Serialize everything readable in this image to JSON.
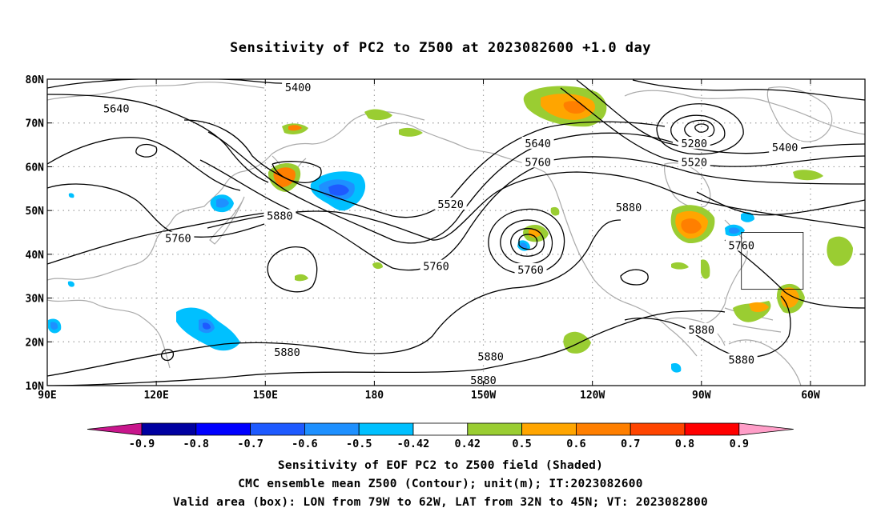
{
  "title": "Sensitivity of PC2 to Z500 at 2023082600 +1.0 day",
  "map": {
    "lat_labels": [
      "80N",
      "70N",
      "60N",
      "50N",
      "40N",
      "30N",
      "20N",
      "10N"
    ],
    "lat_values": [
      80,
      70,
      60,
      50,
      40,
      30,
      20,
      10
    ],
    "lon_labels": [
      "90E",
      "120E",
      "150E",
      "180",
      "150W",
      "120W",
      "90W",
      "60W"
    ],
    "lon_values": [
      90,
      120,
      150,
      180,
      210,
      240,
      270,
      300
    ],
    "lon_range": [
      90,
      315
    ],
    "lat_range": [
      10,
      80
    ],
    "contour_labels": [
      {
        "text": "5640",
        "lon": 109,
        "lat": 73.3
      },
      {
        "text": "5400",
        "lon": 159,
        "lat": 78.2
      },
      {
        "text": "5520",
        "lon": 201,
        "lat": 51.5
      },
      {
        "text": "5880",
        "lon": 154,
        "lat": 48.8
      },
      {
        "text": "5760",
        "lon": 126,
        "lat": 43.7
      },
      {
        "text": "5760",
        "lon": 197,
        "lat": 37.3
      },
      {
        "text": "5640",
        "lon": 225,
        "lat": 65.4
      },
      {
        "text": "5760",
        "lon": 225,
        "lat": 61.1
      },
      {
        "text": "5760",
        "lon": 223,
        "lat": 36.5
      },
      {
        "text": "5880",
        "lon": 250,
        "lat": 50.8
      },
      {
        "text": "5280",
        "lon": 268,
        "lat": 65.4
      },
      {
        "text": "5520",
        "lon": 268,
        "lat": 61.1
      },
      {
        "text": "5400",
        "lon": 293,
        "lat": 64.5
      },
      {
        "text": "5760",
        "lon": 281,
        "lat": 42.1
      },
      {
        "text": "5880",
        "lon": 156,
        "lat": 17.7
      },
      {
        "text": "5880",
        "lon": 212,
        "lat": 16.7
      },
      {
        "text": "5880",
        "lon": 210,
        "lat": 11.3
      },
      {
        "text": "5880",
        "lon": 270,
        "lat": 22.8
      },
      {
        "text": "5880",
        "lon": 281,
        "lat": 15.9
      }
    ],
    "valid_box": {
      "lon_min": 281,
      "lon_max": 298,
      "lat_min": 32,
      "lat_max": 45
    }
  },
  "colorbar": {
    "labels": [
      "-0.9",
      "-0.8",
      "-0.7",
      "-0.6",
      "-0.5",
      "-0.42",
      "0.42",
      "0.5",
      "0.6",
      "0.7",
      "0.8",
      "0.9"
    ],
    "colors": [
      "#0000a0",
      "#0000ff",
      "#1e5aff",
      "#1e90ff",
      "#00c0ff",
      "#ffffff",
      "#9acd32",
      "#ffa500",
      "#ff7f00",
      "#ff4500",
      "#ff0000"
    ],
    "low_color": "#c8168c",
    "high_color": "#ff9ec8"
  },
  "captions": [
    "Sensitivity of EOF PC2 to Z500 field (Shaded)",
    "CMC ensemble mean Z500 (Contour); unit(m); IT:2023082600",
    "Valid area (box): LON from 79W to 62W, LAT from 32N to 45N; VT: 2023082800"
  ],
  "colors": {
    "coast": "#aaaaaa",
    "grid": "#a0a0a0",
    "contour": "#000000"
  }
}
